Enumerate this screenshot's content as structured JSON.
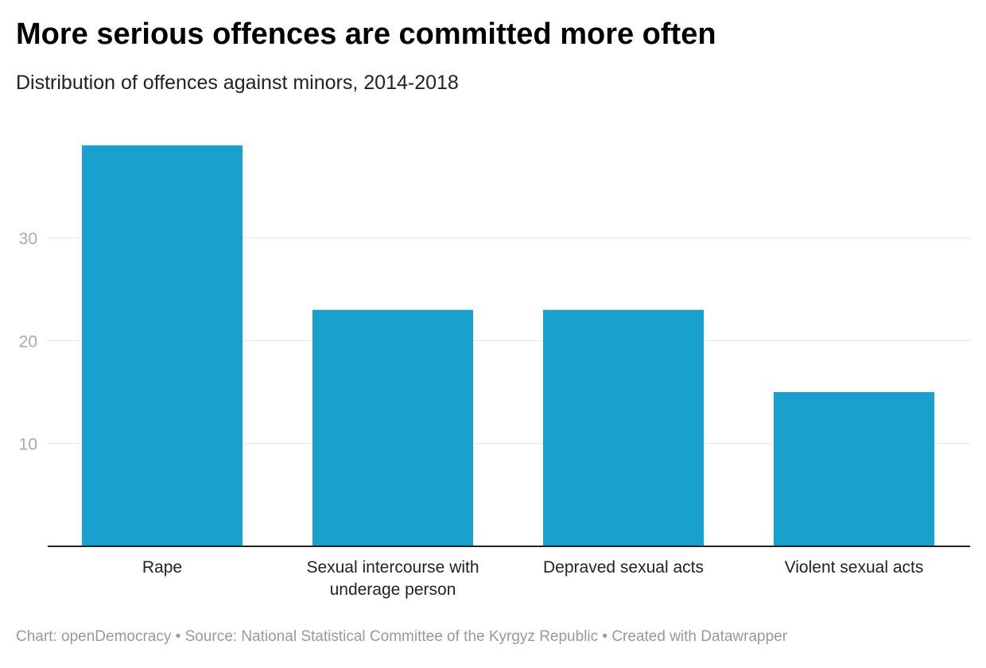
{
  "title": "More serious offences are committed more often",
  "subtitle": "Distribution of offences against minors, 2014-2018",
  "footer": "Chart: openDemocracy • Source: National Statistical Committee of the Kyrgyz Republic • Created with Datawrapper",
  "colors": {
    "bar": "#18a1cd",
    "grid": "#e2e2e2",
    "axis": "#222222"
  },
  "chart_data": {
    "type": "bar",
    "categories": [
      [
        "Rape"
      ],
      [
        "Sexual intercourse with",
        "underage person"
      ],
      [
        "Depraved sexual acts"
      ],
      [
        "Violent sexual acts"
      ]
    ],
    "values": [
      39,
      23,
      23,
      15
    ],
    "yticks": [
      10,
      20,
      30
    ],
    "ylim": [
      0,
      40
    ],
    "grid": true,
    "xlabel": "",
    "ylabel": ""
  }
}
